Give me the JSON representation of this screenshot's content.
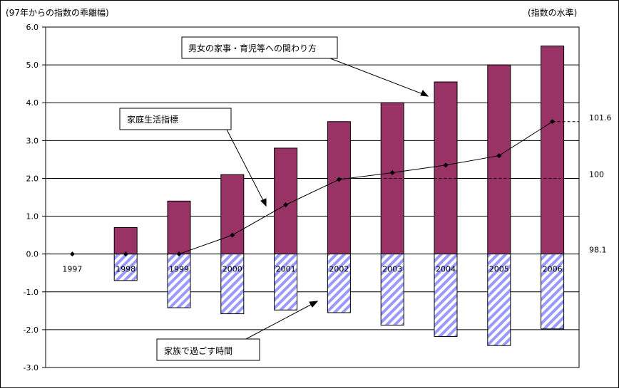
{
  "chart_data": {
    "type": "bar+line",
    "left_axis_title": "(97年からの指数の乖離幅)",
    "right_axis_title": "(指数の水準)",
    "categories": [
      "1997",
      "1998",
      "1999",
      "2000",
      "2001",
      "2002",
      "2003",
      "2004",
      "2005",
      "2006"
    ],
    "ylim": [
      -3.0,
      6.0
    ],
    "yticks": [
      "6.0",
      "5.0",
      "4.0",
      "3.0",
      "2.0",
      "1.0",
      "0.0",
      "-1.0",
      "-2.0",
      "-3.0"
    ],
    "series": [
      {
        "name": "男女の家事・育児等への関わり方",
        "type": "bar",
        "values": [
          0,
          0.7,
          1.4,
          2.1,
          2.8,
          3.5,
          4.0,
          4.55,
          5.0,
          5.5
        ]
      },
      {
        "name": "家族で過ごす時間",
        "type": "bar",
        "values": [
          0,
          -0.7,
          -1.42,
          -1.58,
          -1.48,
          -1.55,
          -1.88,
          -2.18,
          -2.42,
          -1.98
        ]
      },
      {
        "name": "家庭生活指標",
        "type": "line",
        "values": [
          0,
          0,
          0,
          0.5,
          1.3,
          1.97,
          2.15,
          2.35,
          2.6,
          3.5
        ]
      }
    ],
    "right_axis_labels": [
      {
        "label": "101.6",
        "value": 3.5
      },
      {
        "label": "100",
        "value": 2.0
      },
      {
        "label": "98.1",
        "value": 0.0
      }
    ],
    "annotations": {
      "housework": "男女の家事・育児等への関わり方",
      "family_life": "家庭生活指標",
      "family_time": "家族で過ごす時間"
    },
    "colors": {
      "positive_bar": "#993366",
      "negative_hatch": "#9999ff",
      "line": "#000000"
    }
  }
}
